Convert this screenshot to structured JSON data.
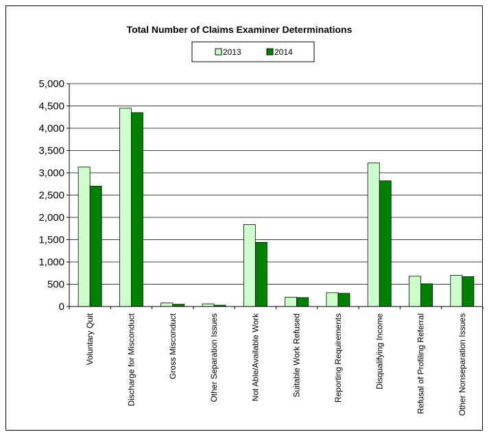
{
  "chart_data": {
    "type": "bar",
    "title": "Total Number of Claims Examiner Determinations",
    "xlabel": "",
    "ylabel": "",
    "ylim": [
      0,
      5000
    ],
    "yticks": [
      0,
      500,
      1000,
      1500,
      2000,
      2500,
      3000,
      3500,
      4000,
      4500,
      5000
    ],
    "ytick_labels": [
      "0",
      "500",
      "1,000",
      "1,500",
      "2,000",
      "2,500",
      "3,000",
      "3,500",
      "4,000",
      "4,500",
      "5,000"
    ],
    "grid": true,
    "legend_position": "top-center",
    "categories": [
      "Voluntary Quit",
      "Discharge for Misconduct",
      "Gross Misconduct",
      "Other Separation Issues",
      "Not Able/Available Work",
      "Suitable Work Refused",
      "Reporting Requirements",
      "Disqualifying Income",
      "Refusal of Profiling Referral",
      "Other Nonseparation Issues"
    ],
    "series": [
      {
        "name": "2013",
        "color": "#ccffcc",
        "values": [
          3130,
          4450,
          80,
          60,
          1840,
          210,
          310,
          3220,
          680,
          700
        ]
      },
      {
        "name": "2014",
        "color": "#008000",
        "values": [
          2700,
          4350,
          50,
          30,
          1440,
          200,
          295,
          2820,
          510,
          670
        ]
      }
    ]
  }
}
